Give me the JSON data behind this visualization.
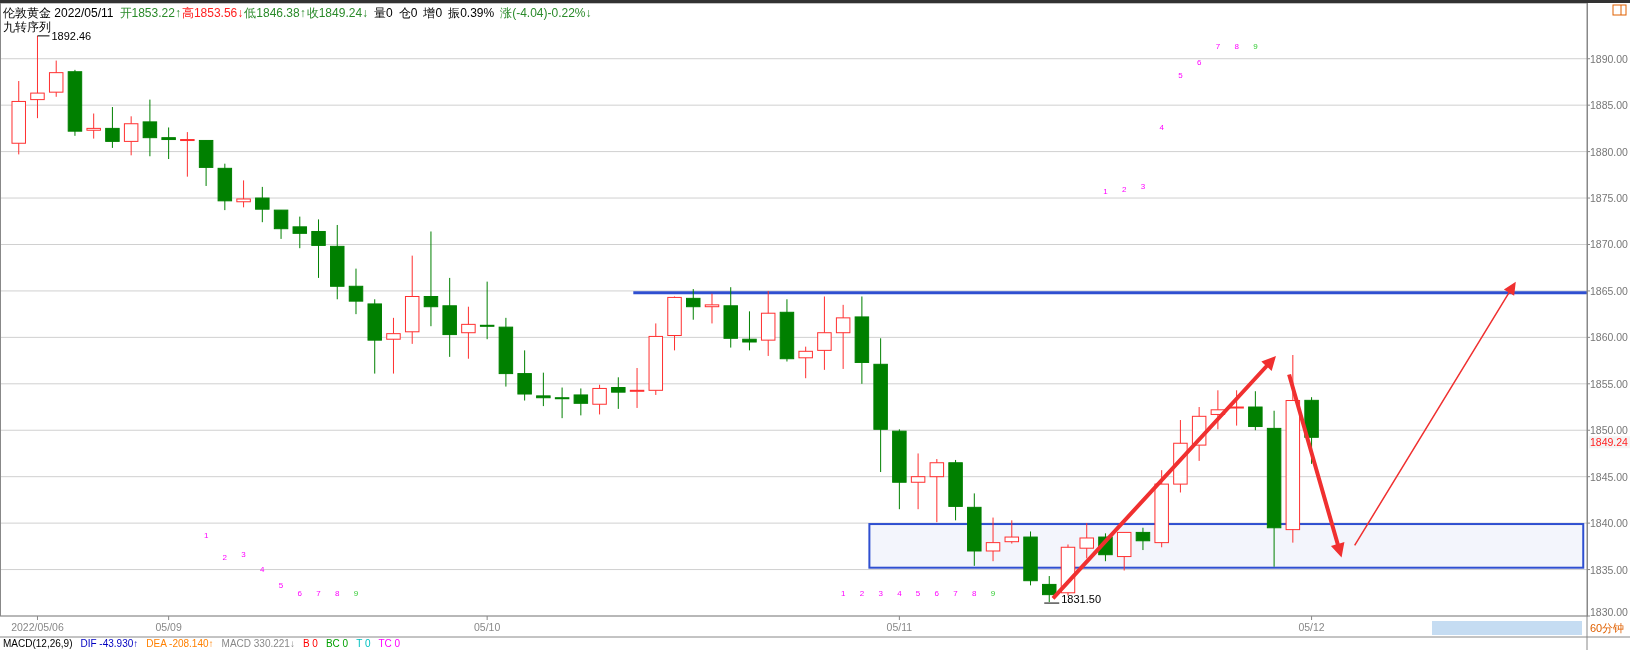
{
  "chart_data": {
    "type": "candlestick",
    "title": "伦敦黄金 2022/05/11",
    "categories": [
      null,
      "2022/05/06",
      null,
      null,
      null,
      null,
      null,
      null,
      "05/09",
      null,
      null,
      null,
      null,
      null,
      null,
      null,
      null,
      null,
      null,
      null,
      null,
      null,
      null,
      null,
      null,
      "05/10",
      null,
      null,
      null,
      null,
      null,
      null,
      null,
      null,
      null,
      null,
      null,
      null,
      null,
      null,
      null,
      null,
      null,
      null,
      null,
      null,
      null,
      "05/11",
      null,
      null,
      null,
      null,
      null,
      null,
      null,
      null,
      null,
      null,
      null,
      null,
      null,
      null,
      null,
      null,
      null,
      null,
      null,
      null,
      null,
      "05/12",
      null,
      null,
      null,
      null,
      null,
      null,
      null,
      null,
      null,
      null,
      null,
      null,
      null,
      null
    ],
    "ylim": [
      1830,
      1896
    ],
    "yticks": [
      {
        "value": 1830,
        "label": "1830.00"
      },
      {
        "value": 1835,
        "label": "1835.00"
      },
      {
        "value": 1840,
        "label": "1840.00"
      },
      {
        "value": 1845,
        "label": "1845.00"
      },
      {
        "value": 1850,
        "label": "1850.00"
      },
      {
        "value": 1855,
        "label": "1855.00"
      },
      {
        "value": 1860,
        "label": "1860.00"
      },
      {
        "value": 1865,
        "label": "1865.00"
      },
      {
        "value": 1870,
        "label": "1870.00"
      },
      {
        "value": 1875,
        "label": "1875.00"
      },
      {
        "value": 1880,
        "label": "1880.00"
      },
      {
        "value": 1885,
        "label": "1885.00"
      },
      {
        "value": 1890,
        "label": "1890.00"
      }
    ],
    "grid": "y",
    "ref_lines": [
      {
        "axis": "y",
        "value": 1864.8,
        "color": "#2f4fd0"
      }
    ],
    "bands": [
      {
        "axis": "y",
        "from": 1835.2,
        "to": 1839.9,
        "color": "#2f4fd0"
      }
    ],
    "series": [
      {
        "ohlc": [
          [
            1880.9,
            1887.6,
            1879.7,
            1885.4
          ],
          [
            1885.6,
            1892.46,
            1883.6,
            1886.3
          ],
          [
            1886.4,
            1889.8,
            1885.9,
            1888.5
          ],
          [
            1888.6,
            1888.8,
            1881.7,
            1882.2
          ],
          [
            1882.3,
            1884.1,
            1881.4,
            1882.5
          ],
          [
            1882.5,
            1884.8,
            1880.4,
            1881.1
          ],
          [
            1881.1,
            1883.8,
            1879.6,
            1883.0
          ],
          [
            1883.2,
            1885.6,
            1879.5,
            1881.5
          ],
          [
            1881.5,
            1882.6,
            1879.2,
            1881.3
          ],
          [
            1881.2,
            1882.1,
            1877.3,
            1881.3
          ],
          [
            1881.2,
            1881.2,
            1876.3,
            1878.3
          ],
          [
            1878.2,
            1878.7,
            1873.7,
            1874.7
          ],
          [
            1874.6,
            1876.9,
            1874.0,
            1874.9
          ],
          [
            1875.0,
            1876.2,
            1872.4,
            1873.8
          ],
          [
            1873.7,
            1873.7,
            1870.6,
            1871.7
          ],
          [
            1871.9,
            1873.0,
            1869.6,
            1871.2
          ],
          [
            1871.4,
            1872.7,
            1866.4,
            1869.9
          ],
          [
            1869.8,
            1872.1,
            1864.1,
            1865.5
          ],
          [
            1865.5,
            1867.4,
            1862.5,
            1863.9
          ],
          [
            1863.6,
            1864.1,
            1856.1,
            1859.7
          ],
          [
            1859.8,
            1862.1,
            1856.1,
            1860.4
          ],
          [
            1860.6,
            1868.8,
            1859.3,
            1864.4
          ],
          [
            1864.4,
            1871.4,
            1861.2,
            1863.3
          ],
          [
            1863.4,
            1866.4,
            1857.9,
            1860.3
          ],
          [
            1860.5,
            1863.3,
            1857.7,
            1861.4
          ],
          [
            1861.3,
            1866.0,
            1859.8,
            1861.2
          ],
          [
            1861.1,
            1862.1,
            1854.7,
            1856.1
          ],
          [
            1856.1,
            1858.6,
            1853.2,
            1853.9
          ],
          [
            1853.7,
            1856.2,
            1852.6,
            1853.5
          ],
          [
            1853.5,
            1854.6,
            1851.3,
            1853.4
          ],
          [
            1853.8,
            1854.5,
            1851.6,
            1852.9
          ],
          [
            1852.8,
            1854.9,
            1851.7,
            1854.5
          ],
          [
            1854.6,
            1855.7,
            1852.3,
            1854.1
          ],
          [
            1854.2,
            1856.7,
            1852.4,
            1854.3
          ],
          [
            1854.3,
            1861.5,
            1853.8,
            1860.1
          ],
          [
            1860.2,
            1864.4,
            1858.6,
            1864.3
          ],
          [
            1864.2,
            1865.2,
            1861.9,
            1863.3
          ],
          [
            1863.3,
            1864.7,
            1861.5,
            1863.5
          ],
          [
            1863.4,
            1865.4,
            1858.9,
            1859.9
          ],
          [
            1859.8,
            1862.8,
            1858.6,
            1859.5
          ],
          [
            1859.7,
            1865.0,
            1858.0,
            1862.6
          ],
          [
            1862.7,
            1864.1,
            1857.4,
            1857.7
          ],
          [
            1857.8,
            1859.0,
            1855.6,
            1858.5
          ],
          [
            1858.6,
            1864.4,
            1856.5,
            1860.5
          ],
          [
            1860.5,
            1863.5,
            1856.6,
            1862.1
          ],
          [
            1862.2,
            1864.4,
            1855.0,
            1857.3
          ],
          [
            1857.1,
            1859.9,
            1845.5,
            1850.1
          ],
          [
            1849.9,
            1850.1,
            1841.5,
            1844.4
          ],
          [
            1844.4,
            1847.5,
            1841.5,
            1845.0
          ],
          [
            1845.0,
            1846.9,
            1840.1,
            1846.5
          ],
          [
            1846.5,
            1846.8,
            1840.3,
            1841.8
          ],
          [
            1841.7,
            1843.2,
            1835.4,
            1837.0
          ],
          [
            1837.0,
            1840.6,
            1835.9,
            1837.9
          ],
          [
            1838.0,
            1840.3,
            1837.8,
            1838.5
          ],
          [
            1838.5,
            1839.1,
            1833.3,
            1833.8
          ],
          [
            1833.4,
            1834.3,
            1831.5,
            1832.3
          ],
          [
            1832.5,
            1837.7,
            1832.2,
            1837.4
          ],
          [
            1837.3,
            1840.0,
            1836.2,
            1838.4
          ],
          [
            1838.5,
            1838.9,
            1835.9,
            1836.6
          ],
          [
            1836.4,
            1839.0,
            1834.9,
            1839.0
          ],
          [
            1839.0,
            1839.5,
            1837.1,
            1838.1
          ],
          [
            1837.9,
            1845.7,
            1837.4,
            1844.2
          ],
          [
            1844.2,
            1851.1,
            1843.3,
            1848.6
          ],
          [
            1848.4,
            1852.5,
            1846.7,
            1851.5
          ],
          [
            1851.7,
            1854.3,
            1850.1,
            1852.2
          ],
          [
            1852.4,
            1854.3,
            1850.5,
            1852.5
          ],
          [
            1852.5,
            1854.2,
            1850.0,
            1850.4
          ],
          [
            1850.2,
            1852.1,
            1835.3,
            1839.5
          ],
          [
            1839.3,
            1858.1,
            1837.9,
            1853.2
          ],
          [
            1853.22,
            1853.56,
            1846.38,
            1849.24
          ],
          null,
          null,
          null,
          null,
          null,
          null,
          null,
          null,
          null,
          null,
          null,
          null,
          null,
          null
        ],
        "colors": [
          "#ff3030",
          "#ff3030",
          "#ff3030",
          "#008000",
          "#ff3030",
          "#008000",
          "#ff3030",
          "#008000",
          "#008000",
          "#ff3030",
          "#008000",
          "#008000",
          "#ff3030",
          "#008000",
          "#008000",
          "#008000",
          "#008000",
          "#008000",
          "#008000",
          "#008000",
          "#ff3030",
          "#ff3030",
          "#008000",
          "#008000",
          "#ff3030",
          "#008000",
          "#008000",
          "#008000",
          "#008000",
          "#008000",
          "#008000",
          "#ff3030",
          "#008000",
          "#ff3030",
          "#ff3030",
          "#ff3030",
          "#008000",
          "#ff3030",
          "#008000",
          "#008000",
          "#ff3030",
          "#008000",
          "#ff3030",
          "#ff3030",
          "#ff3030",
          "#008000",
          "#008000",
          "#008000",
          "#ff3030",
          "#ff3030",
          "#008000",
          "#008000",
          "#ff3030",
          "#ff3030",
          "#008000",
          "#008000",
          "#ff3030",
          "#ff3030",
          "#008000",
          "#ff3030",
          "#008000",
          "#ff3030",
          "#ff3030",
          "#ff3030",
          "#ff3030",
          "#ff3030",
          "#008000",
          "#008000",
          "#ff3030",
          "#008000",
          null,
          null,
          null,
          null,
          null,
          null,
          null,
          null,
          null,
          null,
          null,
          null,
          null,
          null
        ]
      }
    ],
    "annotations": [
      "开1853.22↑",
      "高1853.56↓",
      "低1846.38↑",
      "收1849.24↓",
      "量0",
      "仓0",
      "增0",
      "振0.39%",
      "涨(-4.04)-0.22%↓",
      "九转序列",
      "60分钟",
      "MACD(12,26,9)",
      "DIF -43.930↑",
      "DEA -208.140↑",
      "MACD 330.221↓",
      "B 0",
      "BC 0",
      "T 0",
      "TC 0",
      "1",
      "2",
      "3",
      "4",
      "5",
      "6",
      "7",
      "8",
      "9",
      "1",
      "2",
      "3",
      "4",
      "5",
      "6",
      "7",
      "8",
      "9",
      "1",
      "2",
      "3",
      "4",
      "5",
      "6",
      "7",
      "8",
      "9",
      "1892.46",
      "1831.50",
      "1849.24"
    ]
  }
}
